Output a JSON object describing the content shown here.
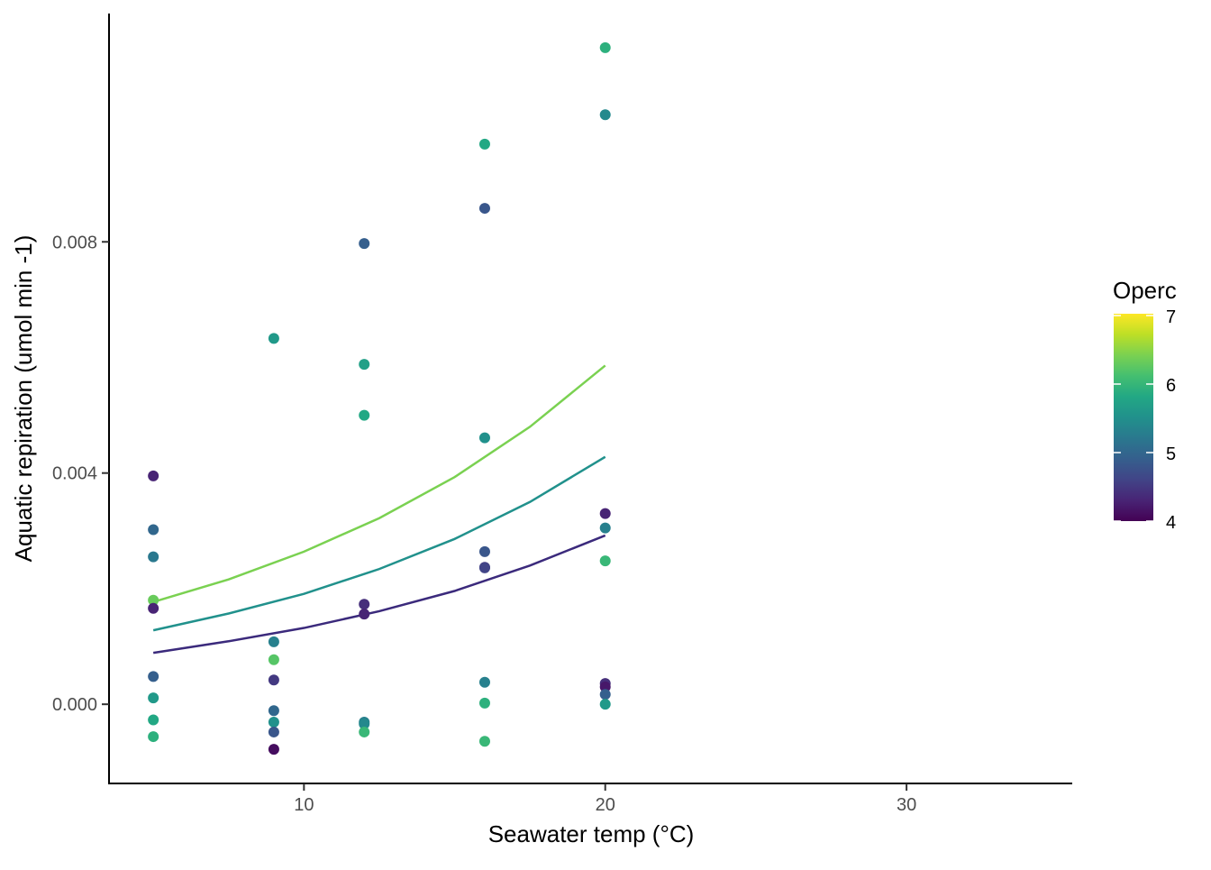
{
  "chart_data": {
    "type": "scatter",
    "title": "",
    "xlabel": "Seawater temp (°C)",
    "ylabel": "Aquatic repiration (umol min -1)",
    "xlim": [
      3.5,
      35.5
    ],
    "ylim": [
      -0.00137,
      0.01195
    ],
    "xticks": [
      10,
      20,
      30
    ],
    "xtick_labels": [
      "10",
      "20",
      "30"
    ],
    "yticks": [
      0,
      0.004,
      0.008
    ],
    "ytick_labels": [
      "0.000",
      "0.004",
      "0.008"
    ],
    "grid": false,
    "legend": {
      "title": "Operc",
      "placement": "right",
      "type": "colorbar",
      "range": [
        4,
        7
      ],
      "ticks": [
        4,
        5,
        6,
        7
      ],
      "tick_labels": [
        "4",
        "5",
        "6",
        "7"
      ],
      "palette": [
        "#440154",
        "#482475",
        "#414487",
        "#355f8d",
        "#2a788e",
        "#21918c",
        "#22a884",
        "#44bf70",
        "#7ad151",
        "#bddf26",
        "#fde725"
      ]
    },
    "points": [
      {
        "x": 5,
        "y": 0.00395,
        "operc": 4.3
      },
      {
        "x": 5,
        "y": 0.00302,
        "operc": 5.0
      },
      {
        "x": 5,
        "y": 0.00255,
        "operc": 5.2
      },
      {
        "x": 5,
        "y": 0.0018,
        "operc": 6.3
      },
      {
        "x": 5,
        "y": 0.00166,
        "operc": 4.3
      },
      {
        "x": 5,
        "y": 0.00048,
        "operc": 4.9
      },
      {
        "x": 5,
        "y": 0.00011,
        "operc": 5.6
      },
      {
        "x": 5,
        "y": -0.00027,
        "operc": 5.8
      },
      {
        "x": 5,
        "y": -0.00056,
        "operc": 5.9
      },
      {
        "x": 9,
        "y": 0.00633,
        "operc": 5.6
      },
      {
        "x": 9,
        "y": 0.00108,
        "operc": 5.3
      },
      {
        "x": 9,
        "y": 0.00077,
        "operc": 6.2
      },
      {
        "x": 9,
        "y": 0.00042,
        "operc": 4.5
      },
      {
        "x": 9,
        "y": -0.00011,
        "operc": 5.0
      },
      {
        "x": 9,
        "y": -0.00031,
        "operc": 5.5
      },
      {
        "x": 9,
        "y": -0.00048,
        "operc": 4.8
      },
      {
        "x": 9,
        "y": -0.00078,
        "operc": 4.1
      },
      {
        "x": 12,
        "y": 0.00797,
        "operc": 4.9
      },
      {
        "x": 12,
        "y": 0.00588,
        "operc": 5.7
      },
      {
        "x": 12,
        "y": 0.005,
        "operc": 5.8
      },
      {
        "x": 12,
        "y": 0.00173,
        "operc": 4.4
      },
      {
        "x": 12,
        "y": 0.00156,
        "operc": 4.3
      },
      {
        "x": 12,
        "y": -0.00031,
        "operc": 5.3
      },
      {
        "x": 12,
        "y": -0.00034,
        "operc": 5.4
      },
      {
        "x": 12,
        "y": -0.00048,
        "operc": 6.0
      },
      {
        "x": 16,
        "y": 0.00969,
        "operc": 5.8
      },
      {
        "x": 16,
        "y": 0.00858,
        "operc": 4.8
      },
      {
        "x": 16,
        "y": 0.00461,
        "operc": 5.5
      },
      {
        "x": 16,
        "y": 0.00264,
        "operc": 4.8
      },
      {
        "x": 16,
        "y": 0.00237,
        "operc": 4.5
      },
      {
        "x": 16,
        "y": 0.00236,
        "operc": 4.6
      },
      {
        "x": 16,
        "y": 0.00038,
        "operc": 5.3
      },
      {
        "x": 16,
        "y": 2e-05,
        "operc": 5.9
      },
      {
        "x": 16,
        "y": -0.00064,
        "operc": 6.0
      },
      {
        "x": 20,
        "y": 0.01136,
        "operc": 5.9
      },
      {
        "x": 20,
        "y": 0.0102,
        "operc": 5.4
      },
      {
        "x": 20,
        "y": 0.0033,
        "operc": 4.3
      },
      {
        "x": 20,
        "y": 0.00305,
        "operc": 5.3
      },
      {
        "x": 20,
        "y": 0.00248,
        "operc": 6.0
      },
      {
        "x": 20,
        "y": 0.00036,
        "operc": 4.4
      },
      {
        "x": 20,
        "y": 0.0003,
        "operc": 4.2
      },
      {
        "x": 20,
        "y": 0.00017,
        "operc": 4.9
      },
      {
        "x": 20,
        "y": 0.0,
        "operc": 5.6
      }
    ],
    "series": [
      {
        "name": "Operc 6.4",
        "operc": 6.4,
        "color": "#7ad151",
        "x": [
          5,
          7.5,
          10,
          12.5,
          15,
          17.5,
          20
        ],
        "y": [
          0.00177,
          0.00216,
          0.00264,
          0.00322,
          0.00393,
          0.0048,
          0.00586
        ]
      },
      {
        "name": "Operc 5.5",
        "operc": 5.5,
        "color": "#21918c",
        "x": [
          5,
          7.5,
          10,
          12.5,
          15,
          17.5,
          20
        ],
        "y": [
          0.00128,
          0.00157,
          0.00191,
          0.00234,
          0.00286,
          0.0035,
          0.00428
        ]
      },
      {
        "name": "Operc 4.45",
        "operc": 4.45,
        "color": "#3b2a7c",
        "x": [
          5,
          7.5,
          10,
          12.5,
          15,
          17.5,
          20
        ],
        "y": [
          0.00089,
          0.00109,
          0.00132,
          0.00161,
          0.00196,
          0.0024,
          0.00292
        ]
      }
    ]
  }
}
